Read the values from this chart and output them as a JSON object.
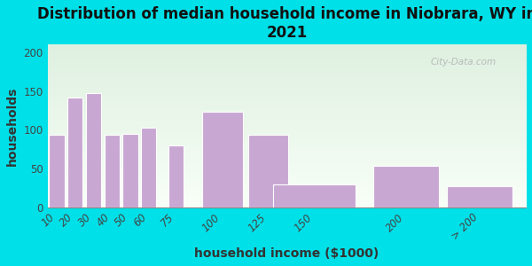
{
  "title": "Distribution of median household income in Niobrara, WY in\n2021",
  "xlabel": "household income ($1000)",
  "ylabel": "households",
  "categories": [
    "10",
    "20",
    "30",
    "40",
    "50",
    "60",
    "75",
    "100",
    "125",
    "150",
    "200",
    "> 200"
  ],
  "x_positions": [
    10,
    20,
    30,
    40,
    50,
    60,
    75,
    100,
    125,
    150,
    200,
    240
  ],
  "bar_widths": [
    9,
    9,
    9,
    9,
    9,
    9,
    9,
    24,
    24,
    49,
    39,
    39
  ],
  "values": [
    93,
    142,
    147,
    93,
    95,
    103,
    80,
    123,
    93,
    30,
    54,
    27
  ],
  "bar_color": "#c8a8d2",
  "bar_edgecolor": "#ffffff",
  "background_outer": "#00e0e8",
  "background_grad_top": "#dff0e0",
  "background_grad_bottom": "#f8fff8",
  "title_fontsize": 12,
  "axis_label_fontsize": 10,
  "tick_fontsize": 8.5,
  "ylim": [
    0,
    210
  ],
  "yticks": [
    0,
    50,
    100,
    150,
    200
  ],
  "xlim": [
    5,
    265
  ],
  "watermark": "City-Data.com"
}
